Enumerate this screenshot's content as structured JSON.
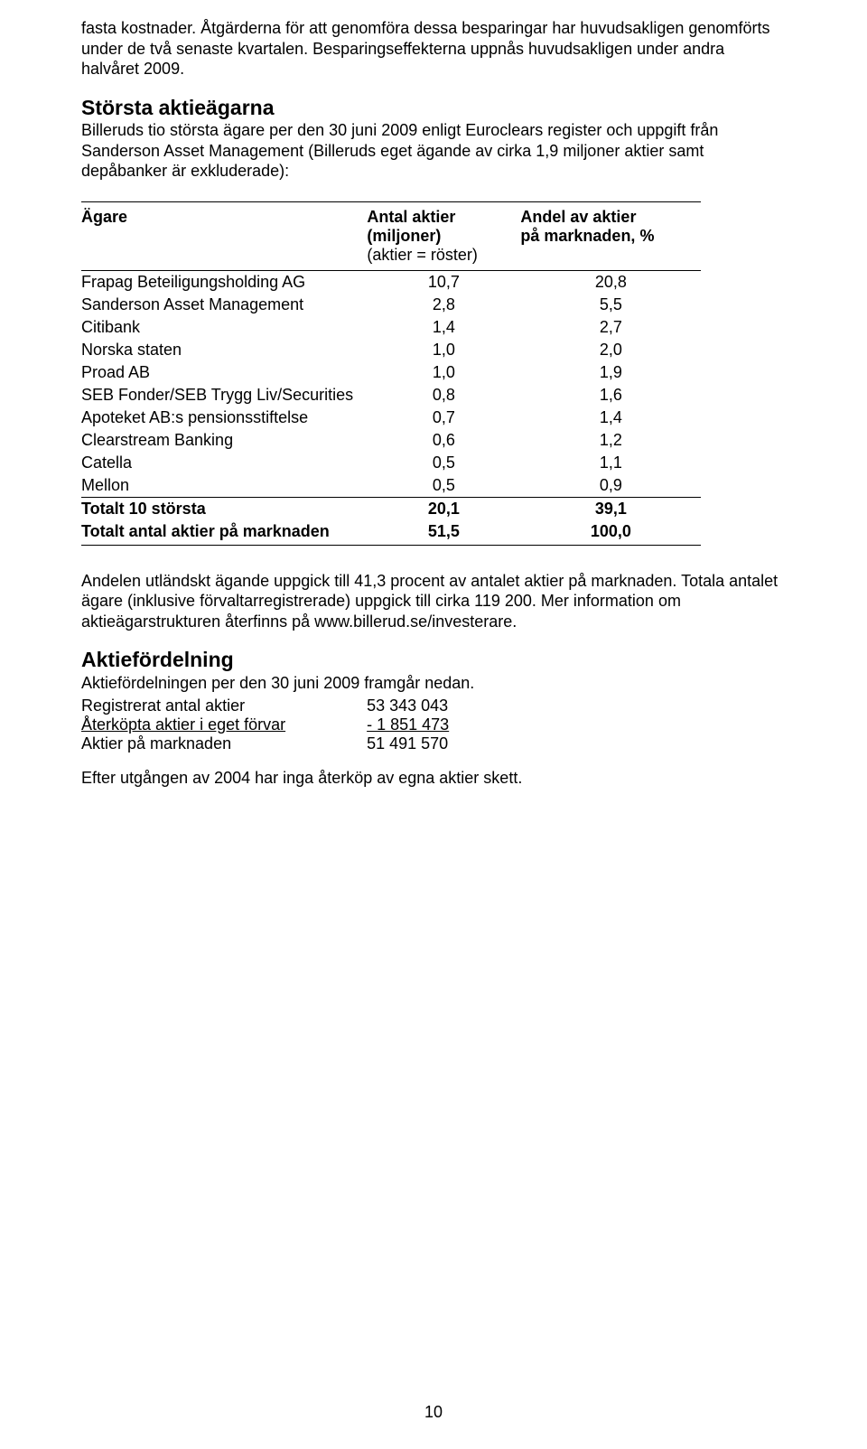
{
  "paragraphs": {
    "intro": "fasta kostnader. Åtgärderna för att genomföra dessa besparingar har huvudsakligen genomförts under de två senaste kvartalen. Besparingseffekterna uppnås huvudsakligen under andra halvåret 2009.",
    "owners_heading": "Största aktieägarna",
    "owners_body": "Billeruds tio största ägare per den 30 juni 2009 enligt Euroclears register och uppgift från Sanderson Asset Management (Billeruds eget ägande av cirka 1,9 miljoner aktier samt depåbanker är exkluderade):",
    "post_table": "Andelen utländskt ägande uppgick till 41,3 procent av antalet aktier på marknaden. Totala antalet ägare (inklusive förvaltarregistrerade) uppgick till cirka 119 200. Mer information om aktieägarstrukturen återfinns på www.billerud.se/investerare.",
    "dist_heading": "Aktiefördelning",
    "dist_body": "Aktiefördelningen per den 30 juni 2009 framgår nedan.",
    "closing": "Efter utgången av 2004 har inga återköp av egna aktier skett."
  },
  "owners_table": {
    "columns": {
      "owner_label": "Ägare",
      "shares_label1": "Antal aktier",
      "shares_label2": "(miljoner)",
      "shares_label3": "(aktier = röster)",
      "pct_label1": "Andel av aktier",
      "pct_label2": "på marknaden, %"
    },
    "rows": [
      {
        "name": "Frapag Beteiligungsholding AG",
        "shares": "10,7",
        "pct": "20,8"
      },
      {
        "name": "Sanderson Asset Management",
        "shares": "2,8",
        "pct": "5,5"
      },
      {
        "name": "Citibank",
        "shares": "1,4",
        "pct": "2,7"
      },
      {
        "name": "Norska staten",
        "shares": "1,0",
        "pct": "2,0"
      },
      {
        "name": "Proad AB",
        "shares": "1,0",
        "pct": "1,9"
      },
      {
        "name": "SEB Fonder/SEB Trygg Liv/Securities",
        "shares": "0,8",
        "pct": "1,6"
      },
      {
        "name": "Apoteket AB:s pensionsstiftelse",
        "shares": "0,7",
        "pct": "1,4"
      },
      {
        "name": "Clearstream Banking",
        "shares": "0,6",
        "pct": "1,2"
      },
      {
        "name": "Catella",
        "shares": "0,5",
        "pct": "1,1"
      },
      {
        "name": "Mellon",
        "shares": "0,5",
        "pct": "0,9"
      }
    ],
    "totals": [
      {
        "name": "Totalt 10 största",
        "shares": "20,1",
        "pct": "39,1"
      },
      {
        "name": "Totalt antal aktier på marknaden",
        "shares": "51,5",
        "pct": "100,0"
      }
    ]
  },
  "distribution_table": {
    "rows": [
      {
        "label": "Registrerat antal aktier",
        "value": "53 343 043",
        "underline": false
      },
      {
        "label": "Återköpta aktier i eget förvar",
        "value": "- 1 851 473",
        "underline": true
      },
      {
        "label": "Aktier på marknaden",
        "value": "51 491 570",
        "underline": false
      }
    ]
  },
  "page_number": "10"
}
